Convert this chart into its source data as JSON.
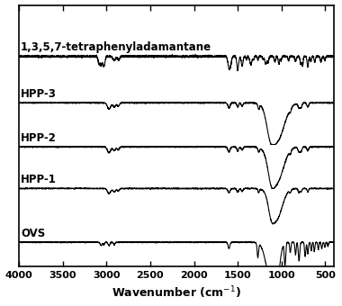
{
  "xlabel": "Wavenumber (cm⁻¹)",
  "xlim": [
    4000,
    400
  ],
  "xticks": [
    4000,
    3500,
    3000,
    2500,
    2000,
    1500,
    1000,
    500
  ],
  "labels": [
    "1,3,5,7-tetraphenyladamantane",
    "HPP-3",
    "HPP-2",
    "HPP-1",
    "OVS"
  ],
  "offsets": [
    0.8,
    0.61,
    0.43,
    0.26,
    0.04
  ],
  "linecolor": "#000000",
  "fontsize_label": 8.5,
  "fontsize_tick": 8,
  "fontsize_xlabel": 9
}
